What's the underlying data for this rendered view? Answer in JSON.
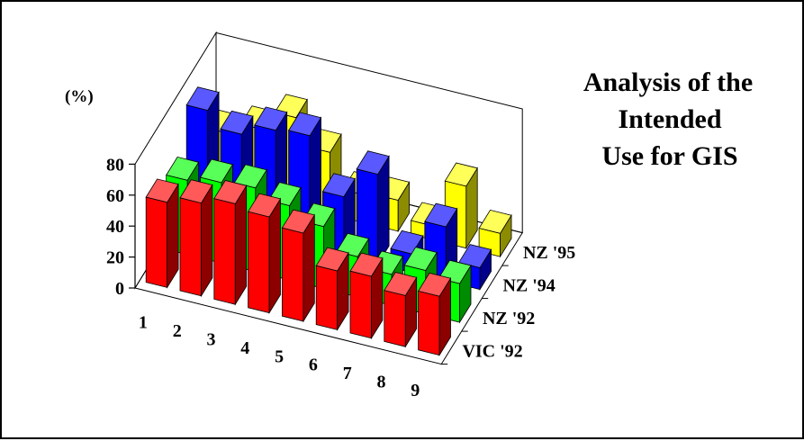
{
  "chart_data": {
    "type": "bar",
    "subtype": "3d-grouped-bar",
    "title_lines": [
      "Analysis of the",
      "Intended",
      "Use for GIS"
    ],
    "ylabel": "(%)",
    "xlabel": "",
    "ylim": [
      0,
      80
    ],
    "yticks": [
      0,
      20,
      40,
      60,
      80
    ],
    "grid": false,
    "categories": [
      "1",
      "2",
      "3",
      "4",
      "5",
      "6",
      "7",
      "8",
      "9"
    ],
    "series": [
      {
        "name": "VIC '92",
        "color": "#ff0000",
        "values": [
          55,
          60,
          65,
          62,
          57,
          38,
          40,
          33,
          38
        ]
      },
      {
        "name": "NZ '92",
        "color": "#00ff00",
        "values": [
          48,
          52,
          54,
          48,
          40,
          26,
          20,
          28,
          25
        ]
      },
      {
        "name": "NZ '94",
        "color": "#0000ff",
        "values": [
          72,
          62,
          70,
          72,
          38,
          58,
          12,
          35,
          14
        ]
      },
      {
        "name": "NZ '95",
        "color": "#ffff00",
        "values": [
          36,
          44,
          57,
          40,
          18,
          20,
          9,
          40,
          15
        ]
      }
    ]
  }
}
